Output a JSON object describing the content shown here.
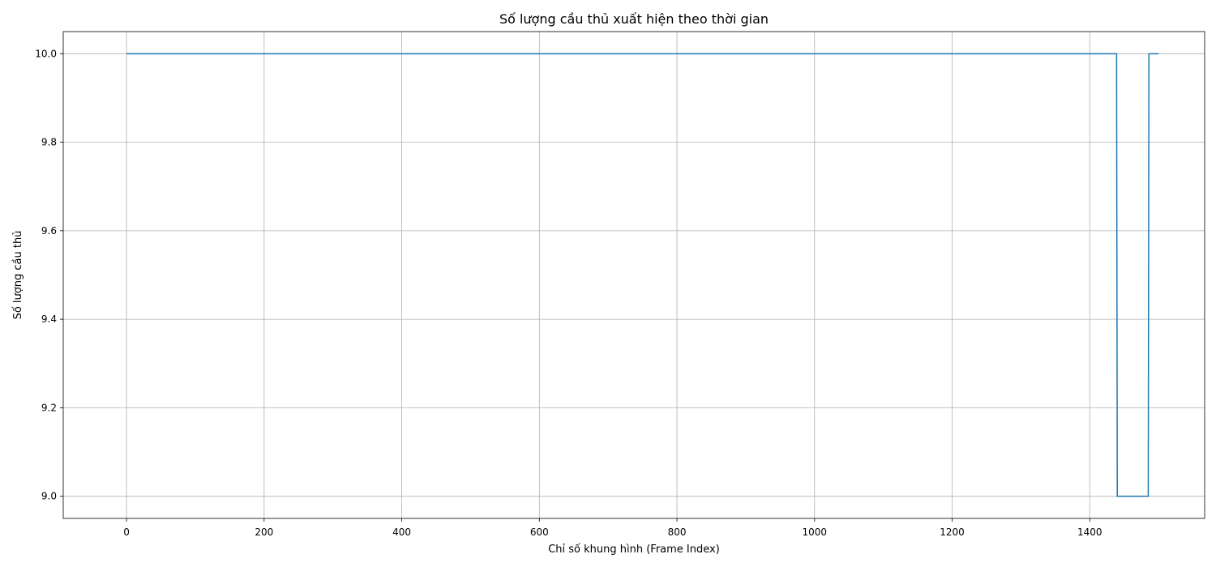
{
  "chart_data": {
    "type": "line",
    "title": "Số lượng cầu thủ xuất hiện theo thời gian",
    "xlabel": "Chỉ số khung hình (Frame Index)",
    "ylabel": "Số lượng cầu thủ",
    "xlim": [
      -92,
      1567
    ],
    "ylim": [
      8.95,
      10.05
    ],
    "xticks": [
      0,
      200,
      400,
      600,
      800,
      1000,
      1200,
      1400
    ],
    "yticks": [
      9.0,
      9.2,
      9.4,
      9.6,
      9.8,
      10.0
    ],
    "ytick_labels": [
      "9.0",
      "9.2",
      "9.4",
      "9.6",
      "9.8",
      "10.0"
    ],
    "grid": true,
    "series": [
      {
        "color": "#1f77b4",
        "x": [
          0,
          1439,
          1440,
          1485,
          1486,
          1500
        ],
        "y": [
          10,
          10,
          9,
          9,
          10,
          10
        ]
      }
    ]
  }
}
